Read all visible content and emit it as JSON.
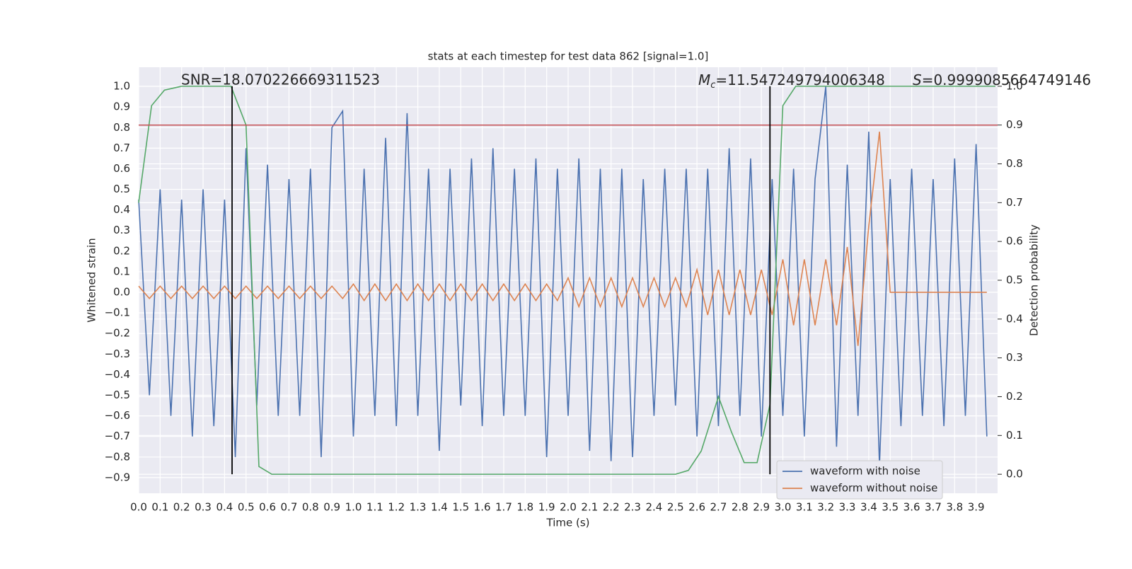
{
  "chart_data": {
    "type": "line",
    "title": "stats at each timestep for test data 862 [signal=1.0]",
    "xlabel": "Time (s)",
    "ylabel": "Whitened strain",
    "y2label": "Detection probability",
    "snr_label": "SNR=18.070226669311523",
    "mc_label": {
      "symbol": "M",
      "sub": "c",
      "text": "=11.547249794006348"
    },
    "s_label": {
      "symbol": "S",
      "text": "=0.9999085664749146"
    },
    "xlim": [
      0,
      4.0
    ],
    "ylim": [
      -0.976,
      1.093
    ],
    "y2lim": [
      -0.049,
      1.049
    ],
    "xticks": [
      {
        "value": 0,
        "label": "0.0"
      },
      0.1,
      0.2,
      0.3,
      0.4,
      0.5,
      0.6,
      0.7,
      0.8,
      0.9,
      {
        "value": 1,
        "label": "1.0"
      },
      1.1,
      1.2,
      1.3,
      1.4,
      1.5,
      1.6,
      1.7,
      1.8,
      1.9,
      {
        "value": 2,
        "label": "2.0"
      },
      2.1,
      2.2,
      2.3,
      2.4,
      2.5,
      2.6,
      2.7,
      2.8,
      2.9,
      {
        "value": 3,
        "label": "3.0"
      },
      3.1,
      3.2,
      3.3,
      3.4,
      3.5,
      3.6,
      3.7,
      3.8,
      3.9
    ],
    "yticks": [
      {
        "value": -0.9,
        "label": "−0.9"
      },
      {
        "value": -0.8,
        "label": "−0.8"
      },
      {
        "value": -0.7,
        "label": "−0.7"
      },
      {
        "value": -0.6,
        "label": "−0.6"
      },
      {
        "value": -0.5,
        "label": "−0.5"
      },
      {
        "value": -0.4,
        "label": "−0.4"
      },
      {
        "value": -0.3,
        "label": "−0.3"
      },
      {
        "value": -0.2,
        "label": "−0.2"
      },
      {
        "value": -0.1,
        "label": "−0.1"
      },
      {
        "value": 0,
        "label": "0.0"
      },
      0.1,
      0.2,
      0.3,
      0.4,
      0.5,
      0.6,
      0.7,
      0.8,
      0.9,
      {
        "value": 1,
        "label": "1.0"
      }
    ],
    "y2ticks": [
      {
        "value": 0,
        "label": "0.0"
      },
      0.1,
      0.2,
      0.3,
      0.4,
      0.5,
      0.6,
      0.7,
      0.8,
      0.9,
      {
        "value": 1,
        "label": "1.0"
      }
    ],
    "grid": true,
    "legend": "lower right",
    "threshold": {
      "value": 0.9,
      "axis": "y2",
      "color": "#c44e52"
    },
    "vlines": {
      "x": [
        0.435,
        2.94
      ],
      "span": [
        0,
        1
      ],
      "axis": "y2",
      "color": "#000000"
    },
    "x": [
      0,
      0.05,
      0.1,
      0.15,
      0.2,
      0.25,
      0.3,
      0.35,
      0.4,
      0.45,
      0.5,
      0.55,
      0.6,
      0.65,
      0.7,
      0.75,
      0.8,
      0.85,
      0.9,
      0.95,
      1.0,
      1.05,
      1.1,
      1.15,
      1.2,
      1.25,
      1.3,
      1.35,
      1.4,
      1.45,
      1.5,
      1.55,
      1.6,
      1.65,
      1.7,
      1.75,
      1.8,
      1.85,
      1.9,
      1.95,
      2.0,
      2.05,
      2.1,
      2.15,
      2.2,
      2.25,
      2.3,
      2.35,
      2.4,
      2.45,
      2.5,
      2.55,
      2.6,
      2.65,
      2.7,
      2.75,
      2.8,
      2.85,
      2.9,
      2.95,
      3.0,
      3.05,
      3.1,
      3.15,
      3.2,
      3.25,
      3.3,
      3.35,
      3.4,
      3.45,
      3.5,
      3.55,
      3.6,
      3.65,
      3.7,
      3.75,
      3.8,
      3.85,
      3.9,
      3.95
    ],
    "series": [
      {
        "name": "waveform with noise",
        "color": "#4c72b0",
        "values": [
          0.45,
          -0.5,
          0.5,
          -0.6,
          0.45,
          -0.7,
          0.5,
          -0.65,
          0.45,
          -0.8,
          0.7,
          -0.55,
          0.62,
          -0.6,
          0.55,
          -0.6,
          0.6,
          -0.8,
          0.8,
          0.88,
          -0.7,
          0.6,
          -0.6,
          0.75,
          -0.65,
          0.87,
          -0.6,
          0.6,
          -0.77,
          0.6,
          -0.55,
          0.65,
          -0.65,
          0.7,
          -0.6,
          0.6,
          -0.6,
          0.65,
          -0.8,
          0.6,
          -0.6,
          0.65,
          -0.77,
          0.6,
          -0.82,
          0.6,
          -0.8,
          0.55,
          -0.6,
          0.6,
          -0.55,
          0.6,
          -0.7,
          0.6,
          -0.65,
          0.7,
          -0.6,
          0.65,
          -0.7,
          0.55,
          -0.6,
          0.6,
          -0.7,
          0.55,
          1.0,
          -0.75,
          0.62,
          -0.6,
          0.78,
          -0.84,
          0.55,
          -0.65,
          0.6,
          -0.6,
          0.55,
          -0.65,
          0.65,
          -0.6,
          0.72,
          -0.7
        ]
      },
      {
        "name": "waveform without noise",
        "color": "#dd8452",
        "values": [
          0.03,
          -0.03,
          0.03,
          -0.03,
          0.03,
          -0.03,
          0.03,
          -0.03,
          0.03,
          -0.03,
          0.03,
          -0.03,
          0.03,
          -0.03,
          0.03,
          -0.03,
          0.03,
          -0.03,
          0.03,
          -0.03,
          0.04,
          -0.04,
          0.04,
          -0.04,
          0.04,
          -0.04,
          0.04,
          -0.04,
          0.04,
          -0.04,
          0.04,
          -0.04,
          0.04,
          -0.04,
          0.04,
          -0.04,
          0.04,
          -0.04,
          0.04,
          -0.04,
          0.07,
          -0.07,
          0.07,
          -0.07,
          0.07,
          -0.07,
          0.07,
          -0.07,
          0.07,
          -0.07,
          0.07,
          -0.07,
          0.11,
          -0.11,
          0.11,
          -0.11,
          0.11,
          -0.11,
          0.11,
          -0.11,
          0.16,
          -0.16,
          0.16,
          -0.16,
          0.16,
          -0.16,
          0.22,
          -0.26,
          0.32,
          0.78,
          0.0,
          0.0,
          0.0,
          0.0,
          0.0,
          0.0,
          0.0,
          0.0,
          0.0,
          0.0
        ]
      },
      {
        "color": "#55a868",
        "axis": "y2",
        "x": [
          0,
          0.06,
          0.12,
          0.2,
          0.43,
          0.5,
          0.56,
          0.62,
          0.7,
          1.5,
          2.5,
          2.56,
          2.62,
          2.7,
          2.76,
          2.82,
          2.88,
          2.94,
          3.0,
          3.06,
          3.99
        ],
        "values": [
          0.7,
          0.95,
          0.99,
          1.0,
          1.0,
          0.9,
          0.02,
          0.0,
          0.0,
          0.0,
          0.0,
          0.01,
          0.06,
          0.2,
          0.11,
          0.03,
          0.03,
          0.18,
          0.95,
          1.0,
          1.0
        ]
      }
    ]
  }
}
